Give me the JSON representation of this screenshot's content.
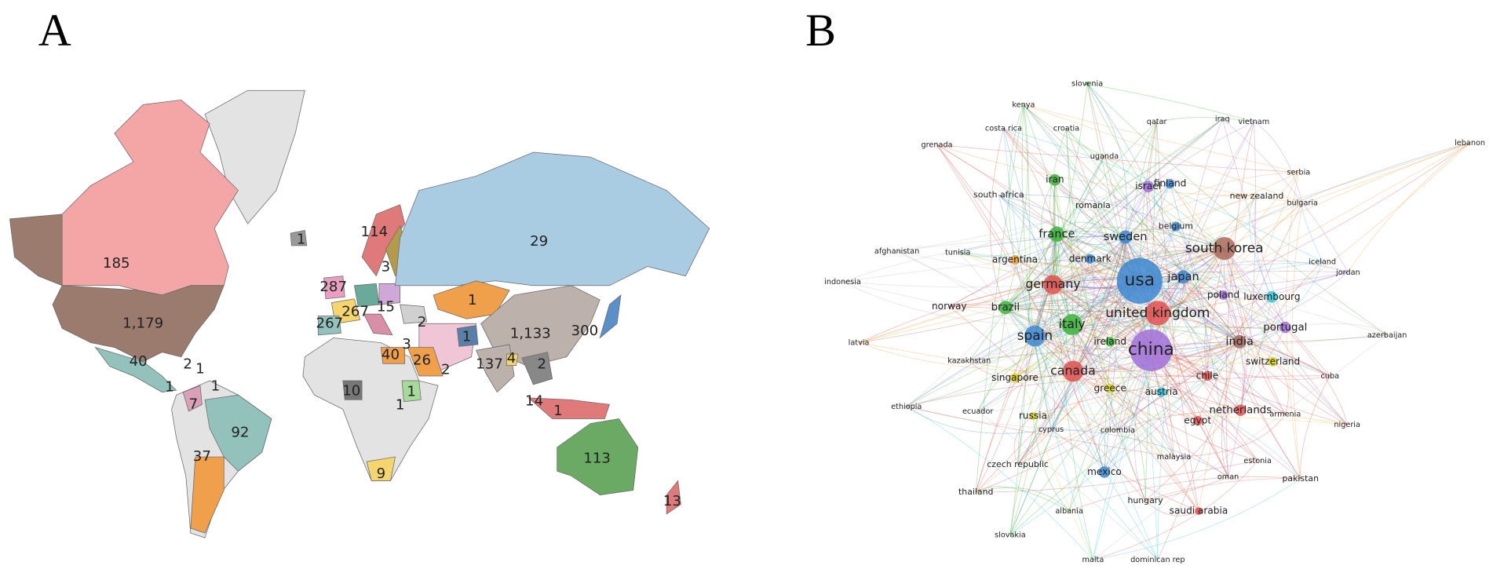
{
  "panel_a": {
    "label": "A",
    "country_counts": [
      "185",
      "1,179",
      "40",
      "2",
      "1",
      "1",
      "1",
      "7",
      "92",
      "37",
      "1",
      "114",
      "3",
      "287",
      "267",
      "15",
      "267",
      "2",
      "3",
      "40",
      "26",
      "2",
      "1",
      "1,133",
      "300",
      "137",
      "4",
      "2",
      "29",
      "1",
      "10",
      "1",
      "1",
      "9",
      "14",
      "1",
      "113",
      "13"
    ]
  },
  "panel_b": {
    "label": "B",
    "nodes": [
      "slovenia",
      "kenya",
      "qatar",
      "iraq",
      "vietnam",
      "costa rica",
      "croatia",
      "lebanon",
      "grenada",
      "uganda",
      "serbia",
      "iran",
      "israel",
      "finland",
      "south africa",
      "new zealand",
      "bulgaria",
      "romania",
      "belgium",
      "france",
      "sweden",
      "south korea",
      "afghanistan",
      "tunisia",
      "argentina",
      "denmark",
      "iceland",
      "usa",
      "japan",
      "jordan",
      "indonesia",
      "germany",
      "poland",
      "luxembourg",
      "norway",
      "brazil",
      "united kingdom",
      "italy",
      "portugal",
      "azerbaijan",
      "spain",
      "ireland",
      "india",
      "latvia",
      "china",
      "kazakhstan",
      "canada",
      "switzerland",
      "singapore",
      "chile",
      "cuba",
      "greece",
      "austria",
      "ethiopia",
      "ecuador",
      "netherlands",
      "armenia",
      "russia",
      "egypt",
      "nigeria",
      "cyprus",
      "colombia",
      "malaysia",
      "estonia",
      "czech republic",
      "mexico",
      "oman",
      "pakistan",
      "thailand",
      "hungary",
      "saudi arabia",
      "albania",
      "slovakia",
      "malta",
      "dominican rep"
    ]
  }
}
